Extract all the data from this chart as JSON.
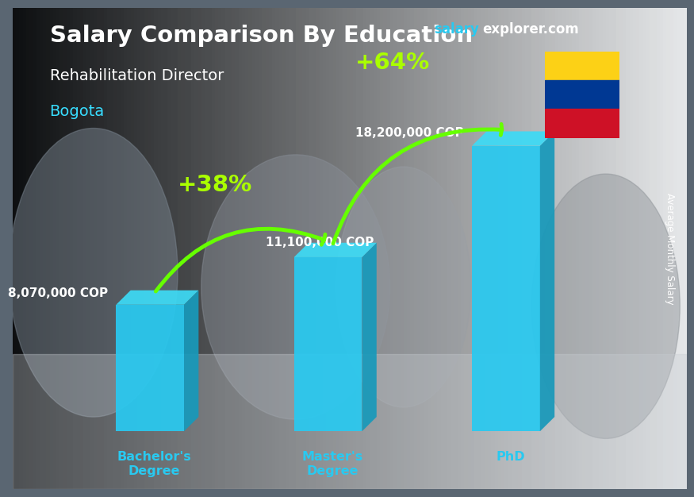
{
  "title": "Salary Comparison By Education",
  "subtitle": "Rehabilitation Director",
  "location": "Bogota",
  "site_salary": "salary",
  "site_explorer": "explorer.com",
  "ylabel": "Average Monthly Salary",
  "categories": [
    "Bachelor's\nDegree",
    "Master's\nDegree",
    "PhD"
  ],
  "values": [
    8070000,
    11100000,
    18200000
  ],
  "value_labels": [
    "8,070,000 COP",
    "11,100,000 COP",
    "18,200,000 COP"
  ],
  "pct_changes": [
    "+38%",
    "+64%"
  ],
  "bar_face_color": "#29C9F0",
  "bar_right_color": "#1899BA",
  "bar_top_color": "#3DDAF5",
  "bg_color": "#5a6672",
  "title_color": "#FFFFFF",
  "subtitle_color": "#FFFFFF",
  "location_color": "#38DDFF",
  "label_color": "#FFFFFF",
  "pct_color": "#AAFF00",
  "arrow_color": "#66FF00",
  "site_color1": "#29C9F0",
  "site_color2": "#FFFFFF",
  "xtick_color": "#29C9F0",
  "flag_yellow": "#FCD116",
  "flag_blue": "#003893",
  "flag_red": "#CE1126",
  "ylim": [
    0,
    23000000
  ],
  "x_positions": [
    1.0,
    2.1,
    3.2
  ],
  "bar_width": 0.42
}
